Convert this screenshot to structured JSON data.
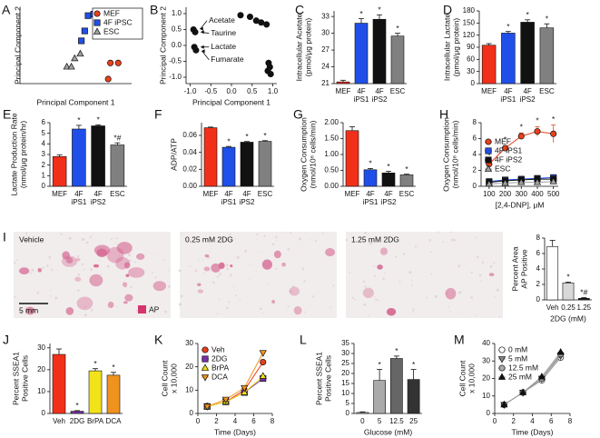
{
  "chart_data": [
    {
      "type": "scatter",
      "panel": "A",
      "xlabel": "Principal Component 1",
      "ylabel": [
        "Principal Component 2"
      ],
      "xlim": [
        0,
        10
      ],
      "ylim": [
        0,
        10
      ],
      "legend": "upper right",
      "series": [
        {
          "name": "MEF",
          "color": "#e8401c",
          "marker": "circle",
          "x": [
            8.1,
            8.8,
            7.9
          ],
          "y": [
            2.7,
            2.7,
            0.6
          ]
        },
        {
          "name": "4F iPSC",
          "color": "#2050e8",
          "marker": "square",
          "x": [
            6.1,
            6.6,
            5.8,
            5.5
          ],
          "y": [
            8.9,
            9.1,
            6.9,
            5.6
          ]
        },
        {
          "name": "ESC",
          "color": "#a0a0a0",
          "marker": "triangle",
          "x": [
            4.2,
            4.6,
            4.9,
            5.4
          ],
          "y": [
            2.2,
            2.2,
            3.3,
            3.9
          ]
        }
      ]
    },
    {
      "type": "scatter",
      "panel": "B",
      "xlabel": "Principal Component 1",
      "ylabel": [
        "Principal Component 2"
      ],
      "xlim": [
        -1.1,
        1.1
      ],
      "ylim": [
        -1.2,
        1.2
      ],
      "xticks": [
        {
          "value": -1,
          "label": "-1.0"
        },
        {
          "value": -0.5,
          "label": "-0.5"
        },
        {
          "value": 0,
          "label": "0.0"
        },
        {
          "value": 0.5,
          "label": "0.5"
        },
        {
          "value": 1,
          "label": "1.0"
        }
      ],
      "yticks": [
        {
          "value": -1,
          "label": "-1.0"
        },
        {
          "value": -0.5,
          "label": "-0.5"
        },
        {
          "value": 0,
          "label": "0.0"
        },
        {
          "value": 0.5,
          "label": "0.5"
        },
        {
          "value": 1,
          "label": "1.0"
        }
      ],
      "series": [
        {
          "color": "#111111",
          "marker": "circle",
          "x": [
            -0.92,
            -0.88,
            -0.9,
            -0.86,
            0.22,
            0.45,
            0.6,
            0.72,
            0.85,
            0.9,
            0.93,
            0.88,
            0.95
          ],
          "y": [
            0.5,
            0.42,
            -0.05,
            -0.15,
            0.95,
            0.9,
            0.78,
            0.72,
            0.66,
            -0.55,
            -0.68,
            -0.8,
            -0.9
          ]
        }
      ],
      "annotations": [
        {
          "text": "Acetate",
          "xy": [
            -0.84,
            0.52
          ],
          "xytext": [
            -0.55,
            0.78
          ]
        },
        {
          "text": "Taurine",
          "xy": [
            -0.82,
            0.42
          ],
          "xytext": [
            -0.5,
            0.38
          ]
        },
        {
          "text": "Lactate",
          "xy": [
            -0.82,
            -0.05
          ],
          "xytext": [
            -0.5,
            -0.05
          ]
        },
        {
          "text": "Fumarate",
          "xy": [
            -0.8,
            -0.18
          ],
          "xytext": [
            -0.5,
            -0.45
          ]
        }
      ]
    },
    {
      "type": "bar",
      "panel": "C",
      "ylabel": [
        "Intracellular Acetate",
        "(pmol/μg protein)"
      ],
      "categories": [
        [
          "MEF"
        ],
        [
          "4F",
          "iPS1"
        ],
        [
          "4F",
          "iPS2"
        ],
        [
          "ESC"
        ]
      ],
      "values": [
        21.3,
        31.8,
        32.5,
        29.5
      ],
      "errors": [
        0.3,
        0.8,
        0.8,
        0.5
      ],
      "annotations": [
        null,
        "*",
        "*",
        "*"
      ],
      "colors": [
        "#f2301a",
        "#1f4fe8",
        "#111111",
        "#808080"
      ],
      "ylim": [
        21,
        34
      ],
      "yticks": [
        21,
        24,
        27,
        30,
        33
      ]
    },
    {
      "type": "bar",
      "panel": "D",
      "ylabel": [
        "Intracellular Lactate",
        "(pmol/μg protein)"
      ],
      "categories": [
        [
          "MEF"
        ],
        [
          "4F",
          "iPS1"
        ],
        [
          "4F",
          "iPS2"
        ],
        [
          "ESC"
        ]
      ],
      "values": [
        95,
        125,
        152,
        138
      ],
      "errors": [
        4,
        4,
        6,
        10
      ],
      "annotations": [
        null,
        "*",
        "*",
        "*"
      ],
      "colors": [
        "#f2301a",
        "#1f4fe8",
        "#111111",
        "#808080"
      ],
      "ylim": [
        0,
        180
      ],
      "yticks": [
        0,
        30,
        60,
        90,
        120,
        150,
        180
      ]
    },
    {
      "type": "bar",
      "panel": "E",
      "ylabel": [
        "Lactate Production Rate",
        "(nmol/μg protein/hr)"
      ],
      "categories": [
        [
          "MEF"
        ],
        [
          "4F",
          "iPS1"
        ],
        [
          "4F",
          "iPS2"
        ],
        [
          "ESC"
        ]
      ],
      "values": [
        2.8,
        5.4,
        5.7,
        3.9
      ],
      "errors": [
        0.15,
        0.35,
        0.1,
        0.2
      ],
      "annotations": [
        null,
        "*",
        "*",
        "*#"
      ],
      "colors": [
        "#f2301a",
        "#1f4fe8",
        "#111111",
        "#808080"
      ],
      "ylim": [
        0,
        6
      ],
      "yticks": [
        0,
        1,
        2,
        3,
        4,
        5,
        6
      ]
    },
    {
      "type": "bar",
      "panel": "F",
      "ylabel": [
        "ADP/ATP"
      ],
      "categories": [
        [
          "MEF"
        ],
        [
          "4F",
          "iPS1"
        ],
        [
          "4F",
          "iPS2"
        ],
        [
          "ESC"
        ]
      ],
      "values": [
        0.069,
        0.046,
        0.052,
        0.053
      ],
      "errors": [
        0.0008,
        0.001,
        0.0008,
        0.0008
      ],
      "annotations": [
        null,
        "*",
        "*",
        "*"
      ],
      "colors": [
        "#f2301a",
        "#1f4fe8",
        "#111111",
        "#808080"
      ],
      "ylim": [
        0,
        0.075
      ],
      "yticks": [
        {
          "value": 0,
          "label": "0.00"
        },
        0.02,
        0.04,
        0.06
      ]
    },
    {
      "type": "bar",
      "panel": "G",
      "ylabel": [
        "Oxygen Consumption",
        "(nmol/10⁶ cells/min)"
      ],
      "categories": [
        [
          "MEF"
        ],
        [
          "4F",
          "iPS1"
        ],
        [
          "4F",
          "iPS2"
        ],
        [
          "ESC"
        ]
      ],
      "values": [
        1.75,
        0.52,
        0.42,
        0.36
      ],
      "errors": [
        0.12,
        0.04,
        0.05,
        0.02
      ],
      "annotations": [
        null,
        "*",
        "*",
        "*"
      ],
      "colors": [
        "#f2301a",
        "#1f4fe8",
        "#111111",
        "#808080"
      ],
      "ylim": [
        0,
        2
      ],
      "yticks": [
        {
          "value": 0,
          "label": "0.00"
        },
        {
          "value": 0.5,
          "label": "0.50"
        },
        {
          "value": 1,
          "label": "1.00"
        },
        {
          "value": 1.5,
          "label": "1.50"
        },
        {
          "value": 2,
          "label": "2.00"
        }
      ]
    },
    {
      "type": "line",
      "panel": "H",
      "ylabel": [
        "Oxygen Consumption",
        "(nmol/10⁶ cells/min)"
      ],
      "xlabel": "[2,4-DNP], μM",
      "x": [
        100,
        200,
        300,
        400,
        500
      ],
      "xlim": [
        50,
        530
      ],
      "ylim": [
        0,
        8
      ],
      "xticks": [
        100,
        200,
        300,
        400,
        500
      ],
      "yticks": [
        0,
        2,
        4,
        6,
        8
      ],
      "legend": "upper left",
      "series": [
        {
          "name": "MEF",
          "color": "#e8401c",
          "marker": "circle",
          "values": [
            2.8,
            4.8,
            6.3,
            6.9,
            6.6
          ],
          "errors": [
            0.3,
            0.3,
            0.4,
            0.6,
            1.1
          ],
          "annotations": [
            "*",
            "*",
            "*",
            "*",
            "*"
          ]
        },
        {
          "name": "4F iPS1",
          "color": "#2050e8",
          "marker": "square",
          "values": [
            0.6,
            0.8,
            0.9,
            1.0,
            1.1
          ]
        },
        {
          "name": "4F iPS2",
          "color": "#111111",
          "marker": "square",
          "values": [
            0.5,
            0.7,
            0.8,
            0.9,
            0.9
          ]
        },
        {
          "name": "ESC",
          "color": "#a0a0a0",
          "marker": "triangle",
          "values": [
            0.3,
            0.4,
            0.5,
            0.5,
            0.6
          ]
        }
      ]
    },
    {
      "type": "image",
      "panel": "I",
      "labels": [
        "Vehicle",
        "0.25 mM 2DG",
        "1.25 mM 2DG"
      ],
      "scale_bar": "5 mm",
      "legend": "AP",
      "legend_color": "#d6336f"
    },
    {
      "type": "bar",
      "ylabel": [
        "Percent Area",
        "AP Positive"
      ],
      "xlabel": "2DG (mM)",
      "categories": [
        [
          "Veh"
        ],
        [
          "0.25"
        ],
        [
          "1.25"
        ]
      ],
      "values": [
        6.9,
        2.2,
        0.2
      ],
      "errors": [
        0.8,
        0.1,
        0.1
      ],
      "annotations": [
        null,
        "*",
        "*#"
      ],
      "colors": [
        "#ffffff",
        "#d8d8d8",
        "#222222"
      ],
      "ylim": [
        0,
        8
      ],
      "yticks": [
        0,
        2,
        4,
        6,
        8
      ]
    },
    {
      "type": "bar",
      "panel": "J",
      "ylabel": [
        "Percent SSEA1",
        "Positive Cells"
      ],
      "categories": [
        [
          "Veh"
        ],
        [
          "2DG"
        ],
        [
          "BrPA"
        ],
        [
          "DCA"
        ]
      ],
      "values": [
        27,
        1,
        19.5,
        17.5
      ],
      "errors": [
        2.5,
        0.3,
        1,
        1.3
      ],
      "annotations": [
        null,
        "*",
        "*",
        "*"
      ],
      "colors": [
        "#f2301a",
        "#7a2fa8",
        "#f2e21a",
        "#f0921e"
      ],
      "ylim": [
        0,
        32
      ],
      "yticks": [
        0,
        10,
        20,
        30
      ]
    },
    {
      "type": "line",
      "panel": "K",
      "ylabel": [
        "Cell Count",
        "x 10,000"
      ],
      "xlabel": "Time (Days)",
      "x": [
        1,
        3,
        5,
        7
      ],
      "xlim": [
        0,
        8
      ],
      "ylim": [
        0,
        30
      ],
      "xticks": [
        0,
        2,
        4,
        6,
        8
      ],
      "yticks": [
        0,
        10,
        20,
        30
      ],
      "legend": "upper left",
      "series": [
        {
          "name": "Veh",
          "color": "#e8401c",
          "marker": "circle",
          "values": [
            3,
            5,
            10,
            22
          ]
        },
        {
          "name": "2DG",
          "color": "#7a2fa8",
          "marker": "square",
          "values": [
            3,
            5,
            9,
            15
          ]
        },
        {
          "name": "BrPA",
          "color": "#f2e21a",
          "marker": "triangle",
          "values": [
            3,
            5,
            9,
            16
          ]
        },
        {
          "name": "DCA",
          "color": "#f0921e",
          "marker": "triangle-down",
          "values": [
            3,
            6,
            11,
            26
          ]
        }
      ]
    },
    {
      "type": "bar",
      "panel": "L",
      "ylabel": [
        "Percent SSEA1",
        "Positive Cells"
      ],
      "xlabel": "Glucose (mM)",
      "categories": [
        [
          "0"
        ],
        [
          "5"
        ],
        [
          "12.5"
        ],
        [
          "25"
        ]
      ],
      "values": [
        0.5,
        16.5,
        27.5,
        17
      ],
      "errors": [
        0.3,
        5.5,
        1.2,
        5
      ],
      "annotations": [
        null,
        "*",
        "*",
        "*"
      ],
      "colors": [
        "#dddddd",
        "#aaaaaa",
        "#666666",
        "#333333"
      ],
      "ylim": [
        0,
        35
      ],
      "yticks": [
        0,
        5,
        10,
        15,
        20,
        25,
        30,
        35
      ]
    },
    {
      "type": "line",
      "panel": "M",
      "ylabel": [
        "Cell Count",
        "x 10,000"
      ],
      "xlabel": "Time (Days)",
      "x": [
        1,
        3,
        5,
        7
      ],
      "xlim": [
        0,
        8
      ],
      "ylim": [
        0,
        40
      ],
      "xticks": [
        0,
        2,
        4,
        6,
        8
      ],
      "yticks": [
        0,
        10,
        20,
        30,
        40
      ],
      "legend": "upper left",
      "series": [
        {
          "name": "0 mM",
          "color": "#ffffff",
          "line_color": "#999999",
          "marker": "circle",
          "values": [
            5,
            12,
            19,
            32
          ]
        },
        {
          "name": "5 mM",
          "color": "#888888",
          "line_color": "#999999",
          "marker": "triangle-down",
          "values": [
            5,
            12,
            20,
            33
          ]
        },
        {
          "name": "12.5 mM",
          "color": "#aaaaaa",
          "line_color": "#999999",
          "marker": "circle",
          "values": [
            5,
            12,
            20,
            34
          ]
        },
        {
          "name": "25 mM",
          "color": "#111111",
          "line_color": "#999999",
          "marker": "triangle",
          "values": [
            5,
            12,
            21,
            35
          ]
        }
      ]
    }
  ]
}
